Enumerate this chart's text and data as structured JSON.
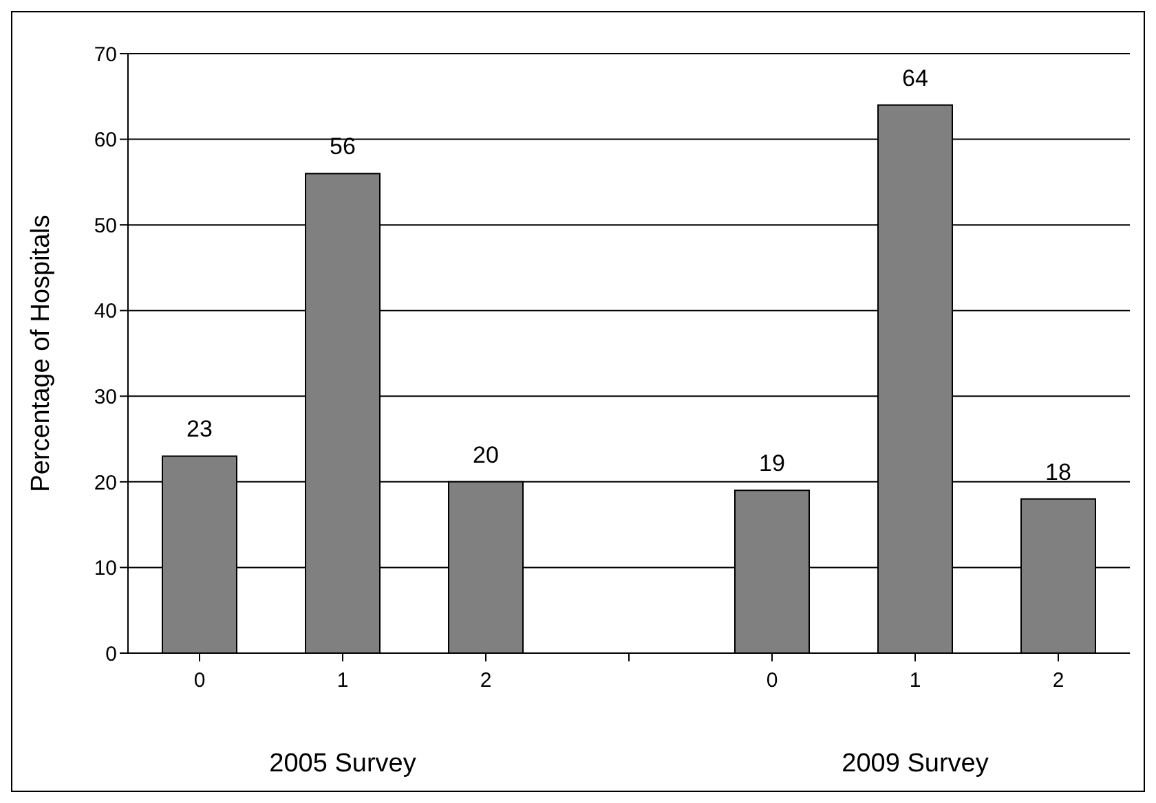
{
  "chart_data": {
    "type": "bar",
    "ylabel": "Percentage of Hospitals",
    "categories": [
      "0",
      "1",
      "2",
      null,
      "0",
      "1",
      "2"
    ],
    "values": [
      23,
      56,
      20,
      null,
      19,
      64,
      18
    ],
    "color": "#808080",
    "ylim": [
      0,
      70
    ],
    "yticks": [
      0,
      10,
      20,
      30,
      40,
      50,
      60,
      70
    ],
    "grid": "y",
    "data_labels": true,
    "annotations": [
      "2005 Survey",
      "2009 Survey"
    ]
  }
}
